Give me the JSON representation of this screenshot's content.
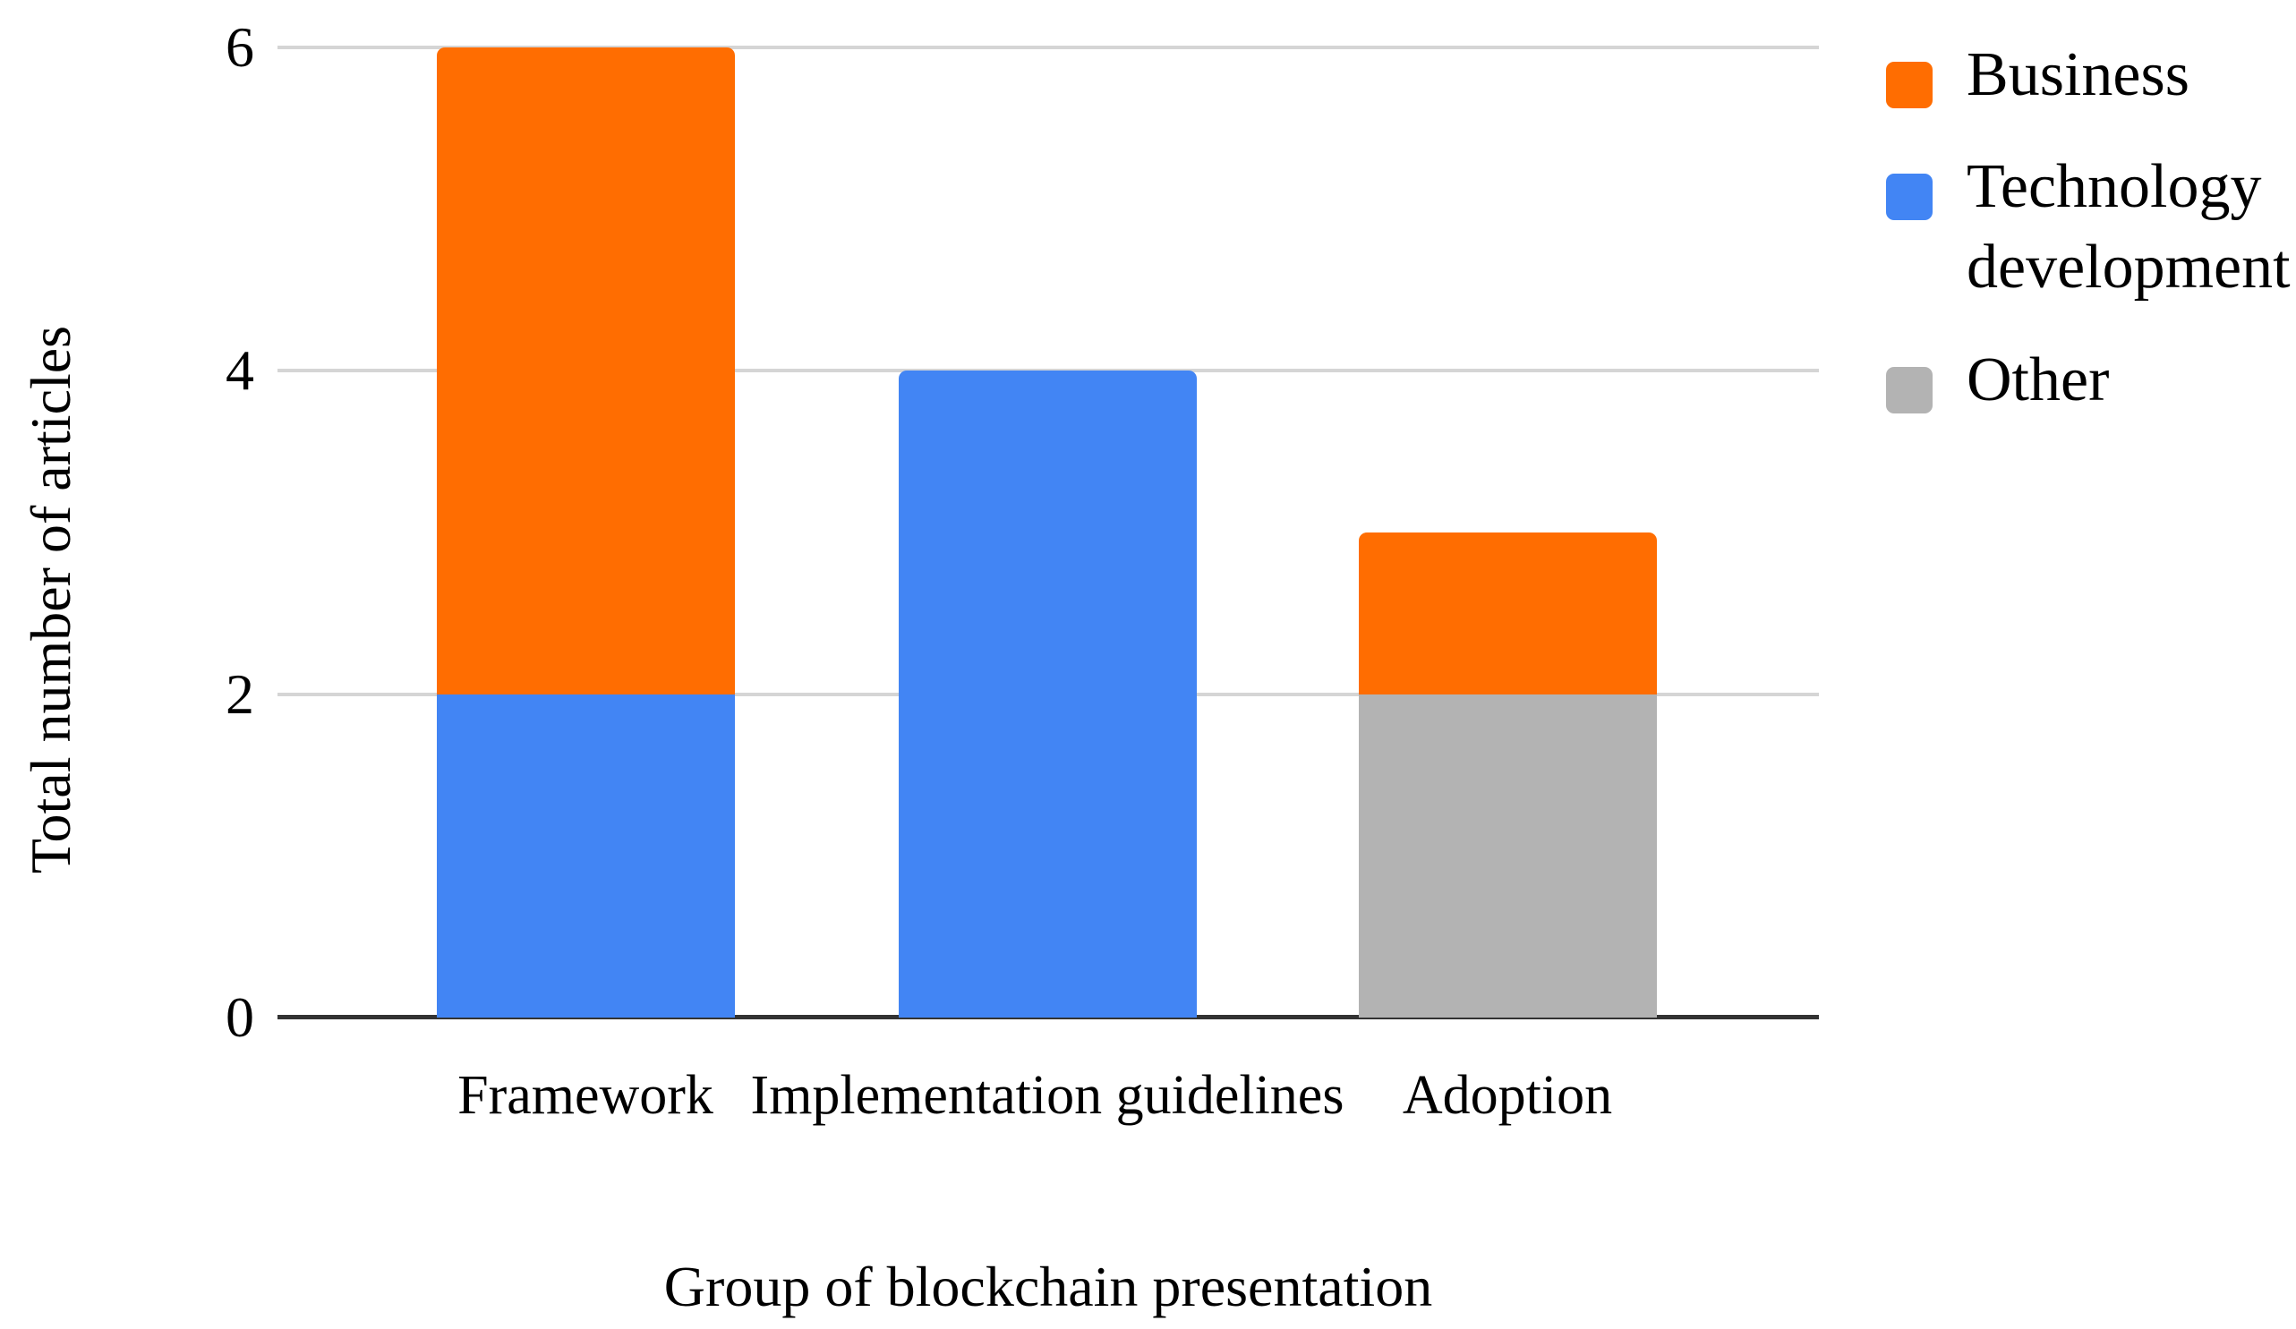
{
  "chart_data": {
    "type": "bar",
    "stacked": true,
    "title": "",
    "xlabel": "Group of blockchain presentation",
    "ylabel": "Total number of articles",
    "categories": [
      "Framework",
      "Implementation guidelines",
      "Adoption"
    ],
    "series": [
      {
        "name": "Business",
        "color": "#FF6D01",
        "values": [
          4,
          0,
          1
        ]
      },
      {
        "name": "Technology development",
        "color": "#4285F4",
        "values": [
          2,
          4,
          0
        ]
      },
      {
        "name": "Other",
        "color": "#B3B3B3",
        "values": [
          0,
          0,
          2
        ]
      }
    ],
    "stack_order_bottom_to_top": [
      "Technology development",
      "Other",
      "Business"
    ],
    "category_totals": [
      6,
      4,
      3
    ],
    "ylim": [
      0,
      6
    ],
    "yticks": [
      0,
      2,
      4,
      6
    ],
    "grid": true,
    "grid_color": "#D5D5D5",
    "axis_line_color": "#333333",
    "text_color": "#000000",
    "background_color": "#FFFFFF",
    "legend_position": "right"
  }
}
